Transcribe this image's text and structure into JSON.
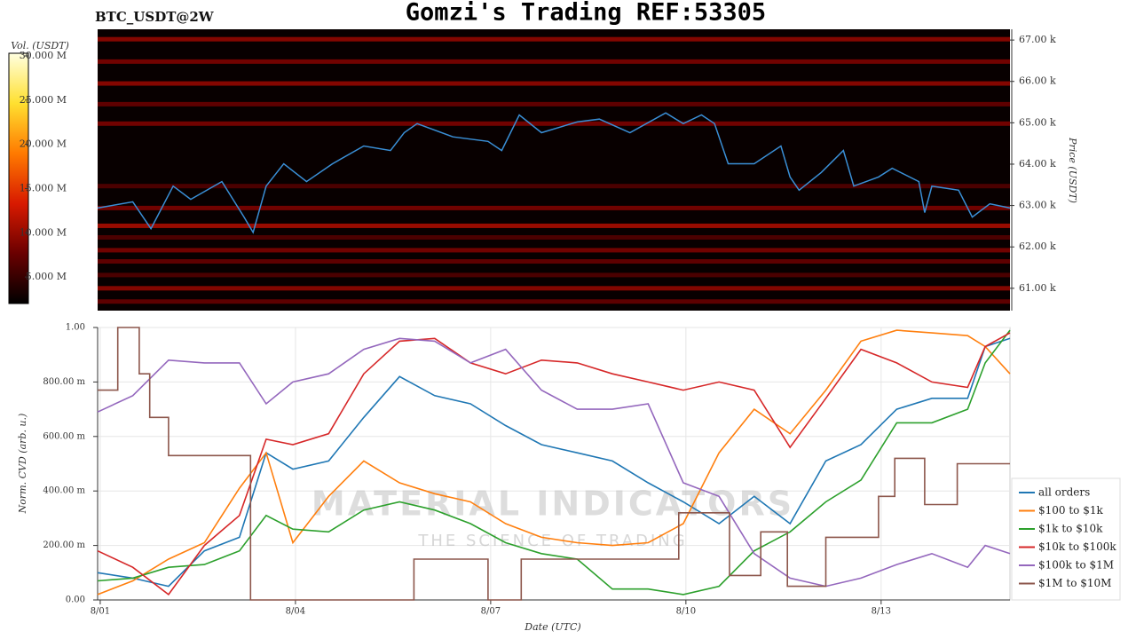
{
  "chart_data": [
    {
      "type": "heatmap",
      "title": "Gomzi's Trading REF:53305",
      "subtitle": "BTC_USDT@2W",
      "ylabel": "Price (USDT)",
      "xlim": [
        -0.04,
        13.98
      ],
      "ylim": [
        60460,
        67260
      ],
      "yticks": [
        {
          "value": 61000,
          "label": "61.00 k"
        },
        {
          "value": 62000,
          "label": "62.00 k"
        },
        {
          "value": 63000,
          "label": "63.00 k"
        },
        {
          "value": 64000,
          "label": "64.00 k"
        },
        {
          "value": 65000,
          "label": "65.00 k"
        },
        {
          "value": 66000,
          "label": "66.00 k"
        },
        {
          "value": 67000,
          "label": "67.00 k"
        }
      ],
      "clabel": "Vol. (USDT)",
      "clim": [
        2000000,
        30300000
      ],
      "cticks": [
        {
          "value": 5000000,
          "label": "5.000 M"
        },
        {
          "value": 10000000,
          "label": "10.000 M"
        },
        {
          "value": 15000000,
          "label": "15.000 M"
        },
        {
          "value": 20000000,
          "label": "20.000 M"
        },
        {
          "value": 25000000,
          "label": "25.000 M"
        },
        {
          "value": 30000000,
          "label": "30.000 M"
        }
      ],
      "colormap": [
        "#000000",
        "#6a0000",
        "#d81a00",
        "#ff7a00",
        "#ffe030",
        "#ffffe0"
      ],
      "levels": [
        {
          "price": 67020,
          "volume": 9000000
        },
        {
          "price": 66480,
          "volume": 8000000
        },
        {
          "price": 65950,
          "volume": 9000000
        },
        {
          "price": 65450,
          "volume": 7000000
        },
        {
          "price": 64980,
          "volume": 8000000
        },
        {
          "price": 63470,
          "volume": 6000000
        },
        {
          "price": 62940,
          "volume": 8000000
        },
        {
          "price": 62510,
          "volume": 10000000
        },
        {
          "price": 62230,
          "volume": 6000000
        },
        {
          "price": 61920,
          "volume": 8000000
        },
        {
          "price": 61650,
          "volume": 7000000
        },
        {
          "price": 61320,
          "volume": 6000000
        },
        {
          "price": 61000,
          "volume": 9000000
        },
        {
          "price": 60680,
          "volume": 7000000
        }
      ],
      "x": [
        -0.04,
        0.5,
        0.78,
        1.12,
        1.39,
        1.87,
        2.21,
        2.35,
        2.55,
        2.82,
        3.17,
        3.57,
        4.05,
        4.46,
        4.67,
        4.87,
        5.42,
        5.96,
        6.17,
        6.44,
        6.78,
        7.33,
        7.67,
        8.14,
        8.69,
        8.96,
        9.24,
        9.44,
        9.65,
        10.05,
        10.46,
        10.6,
        10.74,
        11.08,
        11.42,
        11.58,
        11.96,
        12.17,
        12.58,
        12.67,
        12.78,
        13.19,
        13.4,
        13.67,
        13.98
      ],
      "series": [
        {
          "color": "#3a8fd6",
          "values": [
            62940,
            63090,
            62440,
            63470,
            63150,
            63580,
            62720,
            62350,
            63470,
            64010,
            63580,
            64010,
            64440,
            64330,
            64760,
            64980,
            64660,
            64550,
            64330,
            65190,
            64760,
            65020,
            65090,
            64760,
            65240,
            64980,
            65190,
            64980,
            64010,
            64010,
            64440,
            63690,
            63370,
            63800,
            64330,
            63470,
            63690,
            63900,
            63580,
            62830,
            63470,
            63370,
            62720,
            63040,
            62940
          ]
        }
      ]
    },
    {
      "type": "line",
      "xlabel": "Date (UTC)",
      "ylabel": "Norm. CVD (arb. u.)",
      "grid": true,
      "legend": "lower right",
      "watermark": [
        "MATERIAL INDICATORS",
        "THE SCIENCE OF TRADING"
      ],
      "xlim": [
        -0.04,
        13.98
      ],
      "xticks": [
        {
          "value": 0,
          "label": "8/01"
        },
        {
          "value": 3,
          "label": "8/04"
        },
        {
          "value": 6,
          "label": "8/07"
        },
        {
          "value": 9,
          "label": "8/10"
        },
        {
          "value": 12,
          "label": "8/13"
        }
      ],
      "ylim": [
        0,
        1
      ],
      "yticks": [
        {
          "value": 0,
          "label": "0.00"
        },
        {
          "value": 0.2,
          "label": "200.00 m"
        },
        {
          "value": 0.4,
          "label": "400.00 m"
        },
        {
          "value": 0.6,
          "label": "600.00 m"
        },
        {
          "value": 0.8,
          "label": "800.00 m"
        },
        {
          "value": 1,
          "label": "1.00"
        }
      ],
      "x": [
        -0.04,
        0.5,
        1.05,
        1.6,
        2.14,
        2.55,
        2.96,
        3.51,
        4.05,
        4.6,
        5.14,
        5.69,
        6.23,
        6.78,
        7.33,
        7.87,
        8.42,
        8.96,
        9.51,
        10.05,
        10.6,
        11.15,
        11.69,
        12.24,
        12.78,
        13.33,
        13.6,
        13.98
      ],
      "series": [
        {
          "name": "all orders",
          "color": "#1f77b4",
          "values": [
            0.1,
            0.08,
            0.05,
            0.18,
            0.23,
            0.54,
            0.48,
            0.51,
            0.67,
            0.82,
            0.75,
            0.72,
            0.64,
            0.57,
            0.54,
            0.51,
            0.43,
            0.36,
            0.28,
            0.38,
            0.28,
            0.51,
            0.57,
            0.7,
            0.74,
            0.74,
            0.93,
            0.96
          ]
        },
        {
          "name": "$100 to $1k",
          "color": "#ff7f0e",
          "values": [
            0.02,
            0.07,
            0.15,
            0.21,
            0.41,
            0.54,
            0.21,
            0.38,
            0.51,
            0.43,
            0.39,
            0.36,
            0.28,
            0.23,
            0.21,
            0.2,
            0.21,
            0.28,
            0.54,
            0.7,
            0.61,
            0.77,
            0.95,
            0.99,
            0.98,
            0.97,
            0.93,
            0.83
          ]
        },
        {
          "name": "$1k to $10k",
          "color": "#2ca02c",
          "values": [
            0.07,
            0.08,
            0.12,
            0.13,
            0.18,
            0.31,
            0.26,
            0.25,
            0.33,
            0.36,
            0.33,
            0.28,
            0.21,
            0.17,
            0.15,
            0.04,
            0.04,
            0.02,
            0.05,
            0.18,
            0.25,
            0.36,
            0.44,
            0.65,
            0.65,
            0.7,
            0.87,
            0.99
          ]
        },
        {
          "name": "$10k to $100k",
          "color": "#d62728",
          "values": [
            0.18,
            0.12,
            0.02,
            0.2,
            0.31,
            0.59,
            0.57,
            0.61,
            0.83,
            0.95,
            0.96,
            0.87,
            0.83,
            0.88,
            0.87,
            0.83,
            0.8,
            0.77,
            0.8,
            0.77,
            0.56,
            0.74,
            0.92,
            0.87,
            0.8,
            0.78,
            0.93,
            0.98
          ]
        },
        {
          "name": "$100k to $1M",
          "color": "#9467bd",
          "values": [
            0.69,
            0.75,
            0.88,
            0.87,
            0.87,
            0.72,
            0.8,
            0.83,
            0.92,
            0.96,
            0.95,
            0.87,
            0.92,
            0.77,
            0.7,
            0.7,
            0.72,
            0.43,
            0.38,
            0.17,
            0.08,
            0.05,
            0.08,
            0.13,
            0.17,
            0.12,
            0.2,
            0.17
          ]
        },
        {
          "name": "$1M to $10M",
          "color": "#8c564b",
          "step": true,
          "x": [
            -0.04,
            0.27,
            0.6,
            0.76,
            1.05,
            2.31,
            4.82,
            5.96,
            6.47,
            8.89,
            9.67,
            10.15,
            10.56,
            11.15,
            11.96,
            12.21,
            12.67,
            13.17,
            13.98
          ],
          "values": [
            0.77,
            1.0,
            0.83,
            0.67,
            0.53,
            0.0,
            0.15,
            0.0,
            0.15,
            0.32,
            0.09,
            0.25,
            0.05,
            0.23,
            0.38,
            0.52,
            0.35,
            0.5,
            0.5
          ]
        }
      ]
    }
  ]
}
